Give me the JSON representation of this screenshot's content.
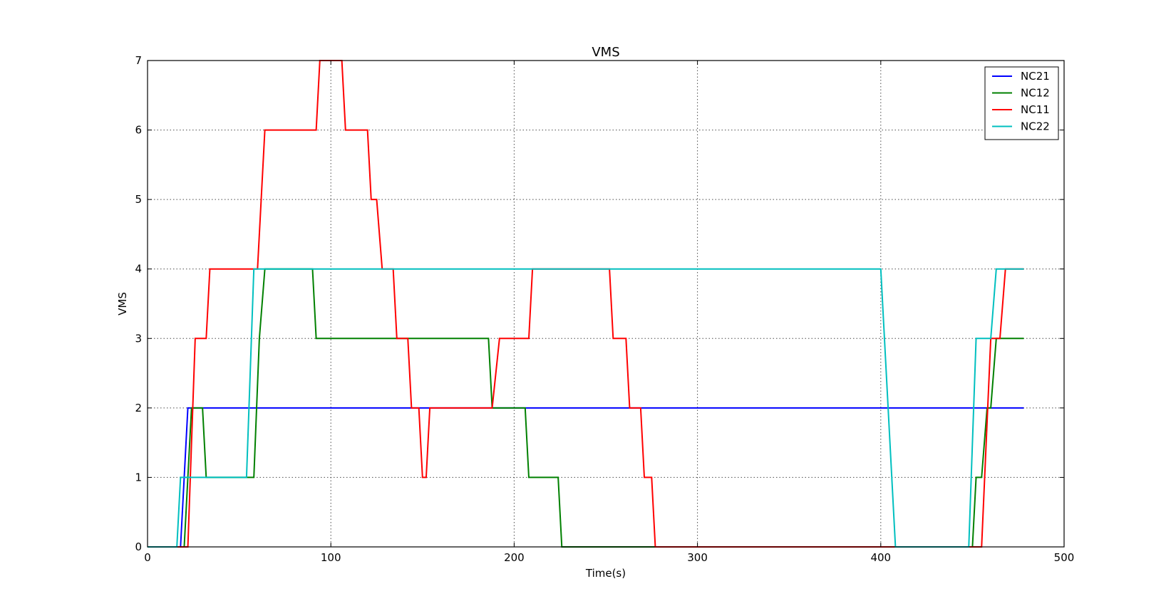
{
  "chart_data": {
    "type": "line",
    "title": "VMS",
    "xlabel": "Time(s)",
    "ylabel": "VMS",
    "xlim": [
      0,
      500
    ],
    "ylim": [
      0,
      7
    ],
    "xticks": [
      0,
      100,
      200,
      300,
      400,
      500
    ],
    "yticks": [
      0,
      1,
      2,
      3,
      4,
      5,
      6,
      7
    ],
    "grid": true,
    "legend_position": "top-right",
    "series": [
      {
        "name": "NC21",
        "color": "#0000ff",
        "x": [
          0,
          18,
          22,
          478
        ],
        "y": [
          0,
          0,
          2,
          2
        ]
      },
      {
        "name": "NC12",
        "color": "#008000",
        "x": [
          0,
          20,
          24,
          30,
          32,
          58,
          61,
          64,
          90,
          92,
          186,
          188,
          206,
          208,
          224,
          226,
          450,
          452,
          455,
          458,
          460,
          463,
          478
        ],
        "y": [
          0,
          0,
          2,
          2,
          1,
          1,
          3,
          4,
          4,
          3,
          3,
          2,
          2,
          1,
          1,
          0,
          0,
          1,
          1,
          2,
          2,
          3,
          3
        ]
      },
      {
        "name": "NC11",
        "color": "#ff0000",
        "x": [
          0,
          22,
          26,
          32,
          34,
          60,
          64,
          92,
          94,
          106,
          108,
          120,
          122,
          125,
          128,
          134,
          136,
          142,
          144,
          148,
          150,
          152,
          154,
          188,
          192,
          208,
          210,
          252,
          254,
          261,
          263,
          269,
          271,
          275,
          277,
          455,
          460,
          465,
          468,
          478
        ],
        "y": [
          0,
          0,
          3,
          3,
          4,
          4,
          6,
          6,
          7,
          7,
          6,
          6,
          5,
          5,
          4,
          4,
          3,
          3,
          2,
          2,
          1,
          1,
          2,
          2,
          3,
          3,
          4,
          4,
          3,
          3,
          2,
          2,
          1,
          1,
          0,
          0,
          3,
          3,
          4,
          4
        ]
      },
      {
        "name": "NC22",
        "color": "#00bfbf",
        "x": [
          0,
          16,
          18,
          54,
          58,
          400,
          408,
          448,
          452,
          456,
          460,
          463,
          478
        ],
        "y": [
          0,
          0,
          1,
          1,
          4,
          4,
          0,
          0,
          3,
          3,
          3,
          4,
          4
        ]
      }
    ]
  }
}
